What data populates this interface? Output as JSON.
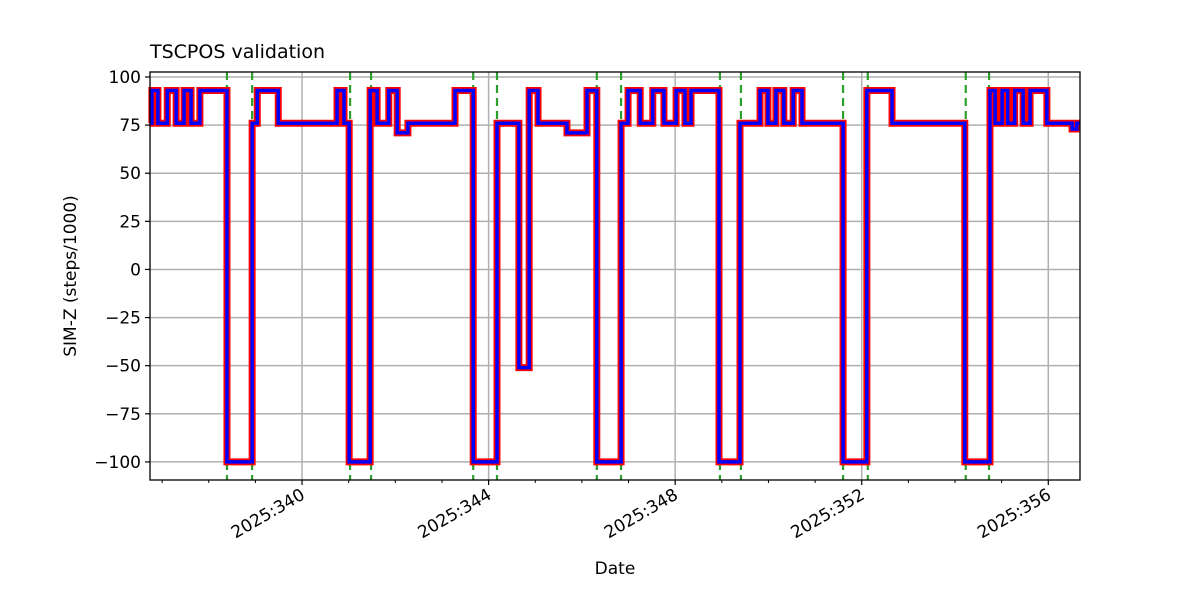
{
  "chart_data": {
    "type": "line",
    "title": "TSCPOS validation",
    "xlabel": "Date",
    "ylabel": "SIM-Z (steps/1000)",
    "xlim": [
      336.74,
      356.68
    ],
    "ylim": [
      -109.4,
      102.6
    ],
    "grid": true,
    "x_ticks": [
      340,
      344,
      348,
      352,
      356
    ],
    "x_tick_labels": [
      "2025:340",
      "2025:344",
      "2025:348",
      "2025:352",
      "2025:356"
    ],
    "x_minor_ticks": [
      337,
      338,
      339,
      341,
      342,
      343,
      345,
      346,
      347,
      349,
      350,
      351,
      353,
      354,
      355
    ],
    "y_ticks": [
      100,
      75,
      50,
      25,
      0,
      -25,
      -50,
      -75,
      -100
    ],
    "y_tick_labels": [
      "100",
      "75",
      "50",
      "25",
      "0",
      "−25",
      "−50",
      "−75",
      "−100"
    ],
    "series": [
      {
        "name": "SIM-Z",
        "style": "step-post",
        "colors": {
          "outer": "#ff0000",
          "inner": "#0000ff"
        },
        "x": [
          336.74,
          336.78,
          336.91,
          337.11,
          337.3,
          337.47,
          337.62,
          337.81,
          338.39,
          338.93,
          339.04,
          339.49,
          340.75,
          340.9,
          341.01,
          341.46,
          341.61,
          341.86,
          342.04,
          342.27,
          343.28,
          343.67,
          344.18,
          344.65,
          344.87,
          345.06,
          345.68,
          346.11,
          346.32,
          346.84,
          346.99,
          347.25,
          347.52,
          347.76,
          348.02,
          348.21,
          348.34,
          348.94,
          349.39,
          349.82,
          349.99,
          350.16,
          350.33,
          350.53,
          350.72,
          351.6,
          352.11,
          352.65,
          354.21,
          354.75,
          354.86,
          355.01,
          355.13,
          355.28,
          355.46,
          355.61,
          355.97,
          356.51,
          356.61,
          356.68
        ],
        "y": [
          76,
          93,
          76,
          93,
          76,
          93,
          76,
          93,
          -100,
          76,
          93,
          76,
          93,
          76,
          -100,
          93,
          76,
          93,
          71,
          76,
          93,
          -100,
          76,
          -51,
          93,
          76,
          71,
          93,
          -100,
          76,
          93,
          76,
          93,
          76,
          93,
          76,
          93,
          -100,
          76,
          93,
          76,
          93,
          76,
          93,
          76,
          -100,
          93,
          76,
          -100,
          93,
          76,
          93,
          76,
          93,
          76,
          93,
          76,
          73,
          76,
          76
        ]
      }
    ],
    "vlines": {
      "color": "#2ca02c",
      "style": "dashed",
      "x": [
        338.39,
        338.93,
        341.03,
        341.48,
        343.67,
        344.18,
        346.32,
        346.84,
        348.96,
        349.41,
        351.6,
        352.13,
        354.23,
        354.73
      ]
    }
  }
}
